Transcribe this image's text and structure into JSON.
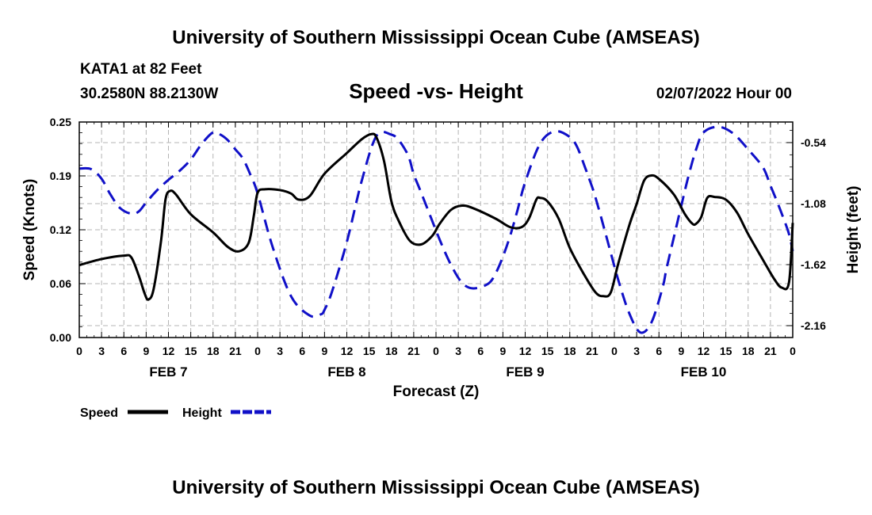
{
  "chart_data": {
    "type": "line",
    "title": "University of Southern Mississippi Ocean Cube (AMSEAS)",
    "footer_title": "University of Southern Mississippi Ocean Cube (AMSEAS)",
    "subtitle": "Speed -vs- Height",
    "station": "KATA1 at 82 Feet",
    "location": "30.2580N  88.2130W",
    "run_time": "02/07/2022 Hour 00",
    "xlabel": "Forecast (Z)",
    "ylabel_left": "Speed (Knots)",
    "ylabel_right": "Height (feet)",
    "x_range": [
      0,
      96
    ],
    "y_left_range": [
      0,
      0.25
    ],
    "y_right_range": [
      -2.265,
      -0.358
    ],
    "y_left_ticks": [
      "0.00",
      "0.06",
      "0.12",
      "0.19",
      "0.25"
    ],
    "y_left_tick_values": [
      0,
      0.0625,
      0.125,
      0.1875,
      0.25
    ],
    "y_right_ticks": [
      "-0.54",
      "-1.08",
      "-1.62",
      "-2.16"
    ],
    "y_right_tick_values": [
      -0.54,
      -1.08,
      -1.62,
      -2.16
    ],
    "x_ticks": [
      "0",
      "3",
      "6",
      "9",
      "12",
      "15",
      "18",
      "21",
      "0",
      "3",
      "6",
      "9",
      "12",
      "15",
      "18",
      "21",
      "0",
      "3",
      "6",
      "9",
      "12",
      "15",
      "18",
      "21",
      "0",
      "3",
      "6",
      "9",
      "12",
      "15",
      "18",
      "21",
      "0"
    ],
    "day_labels": [
      {
        "label": "FEB 7",
        "x": 12
      },
      {
        "label": "FEB 8",
        "x": 36
      },
      {
        "label": "FEB 9",
        "x": 60
      },
      {
        "label": "FEB 10",
        "x": 84
      }
    ],
    "grid": true,
    "series": [
      {
        "name": "Speed",
        "axis": "left",
        "color": "#000000",
        "style": "solid",
        "x": [
          0,
          3,
          6,
          7,
          8,
          8.8,
          9.3,
          10,
          11,
          11.6,
          12.2,
          13,
          15,
          18,
          20,
          21.5,
          22.8,
          23.5,
          24,
          25,
          27,
          28.5,
          29.5,
          31,
          33,
          36,
          38,
          39.3,
          40,
          41,
          42,
          43,
          44.5,
          46,
          47.5,
          48.5,
          50,
          51.5,
          53,
          56,
          58,
          59.5,
          60.5,
          61.5,
          62,
          63,
          64.5,
          66,
          68,
          69.5,
          70.5,
          71.5,
          72.5,
          74,
          75,
          76,
          77,
          78,
          80,
          81.5,
          82.5,
          83,
          83.7,
          84.5,
          85.5,
          87,
          88.5,
          90,
          92,
          93.5,
          94.5,
          95.5,
          96
        ],
        "values": [
          0.084,
          0.091,
          0.095,
          0.093,
          0.072,
          0.051,
          0.044,
          0.056,
          0.112,
          0.16,
          0.17,
          0.166,
          0.143,
          0.122,
          0.105,
          0.1,
          0.11,
          0.142,
          0.168,
          0.172,
          0.171,
          0.167,
          0.16,
          0.164,
          0.19,
          0.214,
          0.23,
          0.236,
          0.232,
          0.205,
          0.158,
          0.135,
          0.112,
          0.108,
          0.118,
          0.132,
          0.148,
          0.153,
          0.15,
          0.138,
          0.128,
          0.128,
          0.138,
          0.16,
          0.162,
          0.158,
          0.138,
          0.104,
          0.072,
          0.052,
          0.048,
          0.052,
          0.085,
          0.13,
          0.155,
          0.182,
          0.188,
          0.184,
          0.166,
          0.143,
          0.132,
          0.132,
          0.14,
          0.162,
          0.163,
          0.16,
          0.145,
          0.12,
          0.09,
          0.068,
          0.058,
          0.064,
          0.133
        ]
      },
      {
        "name": "Height",
        "axis": "right",
        "color": "#1010c8",
        "style": "dashed",
        "x": [
          0,
          1.6,
          3,
          4.2,
          5.5,
          7,
          8,
          9,
          10.5,
          12,
          13.5,
          15,
          16.5,
          18,
          19,
          20,
          21,
          22,
          23,
          24,
          26,
          28.5,
          31,
          32.5,
          33,
          34,
          36,
          38,
          40,
          42,
          43,
          44,
          44.5,
          45,
          45.8,
          47,
          48.5,
          50,
          51.5,
          53,
          55,
          56,
          57,
          58,
          59,
          60,
          62,
          64,
          66,
          67,
          68,
          68.5,
          69.2,
          70,
          71,
          72.5,
          74,
          75.5,
          77,
          78.5,
          79,
          80,
          81,
          82,
          83,
          84,
          86,
          88,
          90,
          92,
          93,
          94,
          94.7,
          95.5,
          96
        ],
        "values": [
          -0.77,
          -0.775,
          -0.86,
          -1.0,
          -1.12,
          -1.17,
          -1.15,
          -1.07,
          -0.96,
          -0.87,
          -0.79,
          -0.69,
          -0.55,
          -0.45,
          -0.47,
          -0.52,
          -0.6,
          -0.68,
          -0.82,
          -0.99,
          -1.46,
          -1.9,
          -2.07,
          -2.06,
          -2.02,
          -1.86,
          -1.42,
          -0.88,
          -0.48,
          -0.47,
          -0.52,
          -0.62,
          -0.7,
          -0.82,
          -0.95,
          -1.15,
          -1.4,
          -1.62,
          -1.78,
          -1.83,
          -1.79,
          -1.7,
          -1.55,
          -1.36,
          -1.13,
          -0.89,
          -0.55,
          -0.44,
          -0.49,
          -0.58,
          -0.75,
          -0.84,
          -0.97,
          -1.15,
          -1.39,
          -1.75,
          -2.05,
          -2.22,
          -2.13,
          -1.82,
          -1.66,
          -1.38,
          -1.1,
          -0.83,
          -0.6,
          -0.45,
          -0.4,
          -0.46,
          -0.6,
          -0.76,
          -0.92,
          -1.08,
          -1.2,
          -1.35,
          -1.5
        ]
      }
    ],
    "legend": [
      {
        "label": "Speed",
        "color": "#000000",
        "style": "solid"
      },
      {
        "label": "Height",
        "color": "#1010c8",
        "style": "dashed"
      }
    ]
  }
}
